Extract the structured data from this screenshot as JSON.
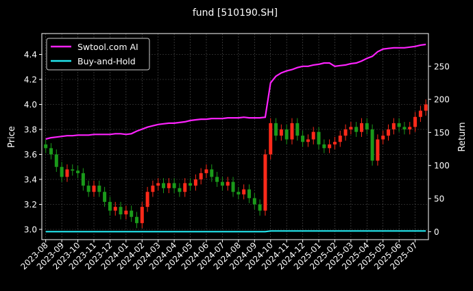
{
  "chart_data": {
    "type": "line",
    "title": "fund [510190.SH]",
    "ylabel": "Price",
    "y2label": "Return",
    "ylim": [
      2.95,
      4.54
    ],
    "y2lim": [
      -12,
      295
    ],
    "yticks": [
      "3.0",
      "3.2",
      "3.4",
      "3.6",
      "3.8",
      "4.0",
      "4.2",
      "4.4"
    ],
    "y2ticks": [
      "0",
      "50",
      "100",
      "150",
      "200",
      "250"
    ],
    "xticks": [
      "2023-08",
      "2023-09",
      "2023-10",
      "2023-11",
      "2023-12",
      "2024-01",
      "2024-02",
      "2024-03",
      "2024-04",
      "2024-05",
      "2024-06",
      "2024-07",
      "2024-08",
      "2024-09",
      "2024-10",
      "2024-11",
      "2024-12",
      "2025-01",
      "2025-02",
      "2025-03",
      "2025-04",
      "2025-05",
      "2025-06",
      "2025-07"
    ],
    "grid": true,
    "legend_position": "top-left",
    "colors": {
      "up": "#ff2a1a",
      "down": "#1a9a1a",
      "strategy": "#ff22ff",
      "buy_hold": "#22e8f0",
      "background": "#000000",
      "grid": "#555555"
    },
    "price_series": {
      "name": "Price",
      "dates": [
        "2023-08-01",
        "2023-08-11",
        "2023-08-21",
        "2023-09-01",
        "2023-09-11",
        "2023-09-21",
        "2023-10-01",
        "2023-10-11",
        "2023-10-21",
        "2023-11-01",
        "2023-11-11",
        "2023-11-21",
        "2023-12-01",
        "2023-12-11",
        "2023-12-21",
        "2024-01-01",
        "2024-01-11",
        "2024-01-21",
        "2024-02-01",
        "2024-02-11",
        "2024-02-21",
        "2024-03-01",
        "2024-03-11",
        "2024-03-21",
        "2024-04-01",
        "2024-04-11",
        "2024-04-21",
        "2024-05-01",
        "2024-05-11",
        "2024-05-21",
        "2024-06-01",
        "2024-06-11",
        "2024-06-21",
        "2024-07-01",
        "2024-07-11",
        "2024-07-21",
        "2024-08-01",
        "2024-08-11",
        "2024-08-21",
        "2024-09-01",
        "2024-09-11",
        "2024-09-21",
        "2024-10-01",
        "2024-10-11",
        "2024-10-21",
        "2024-11-01",
        "2024-11-11",
        "2024-11-21",
        "2024-12-01",
        "2024-12-11",
        "2024-12-21",
        "2025-01-01",
        "2025-01-11",
        "2025-01-21",
        "2025-02-01",
        "2025-02-11",
        "2025-02-21",
        "2025-03-01",
        "2025-03-11",
        "2025-03-21",
        "2025-04-01",
        "2025-04-11",
        "2025-04-21",
        "2025-05-01",
        "2025-05-11",
        "2025-05-21",
        "2025-06-01",
        "2025-06-11",
        "2025-06-21",
        "2025-07-01",
        "2025-07-11",
        "2025-07-21"
      ],
      "close": [
        3.65,
        3.6,
        3.5,
        3.42,
        3.48,
        3.47,
        3.45,
        3.35,
        3.3,
        3.35,
        3.3,
        3.22,
        3.15,
        3.18,
        3.12,
        3.15,
        3.1,
        3.05,
        3.18,
        3.3,
        3.35,
        3.37,
        3.33,
        3.37,
        3.33,
        3.3,
        3.37,
        3.35,
        3.4,
        3.45,
        3.48,
        3.42,
        3.38,
        3.35,
        3.38,
        3.3,
        3.28,
        3.32,
        3.25,
        3.2,
        3.15,
        3.6,
        3.85,
        3.75,
        3.8,
        3.72,
        3.85,
        3.75,
        3.7,
        3.72,
        3.78,
        3.68,
        3.65,
        3.68,
        3.7,
        3.75,
        3.8,
        3.82,
        3.78,
        3.85,
        3.8,
        3.55,
        3.72,
        3.75,
        3.8,
        3.85,
        3.82,
        3.8,
        3.82,
        3.9,
        3.95,
        4.0
      ]
    },
    "series": [
      {
        "name": "Swtool.com AI",
        "axis": "right",
        "values": [
          140,
          142,
          143,
          144,
          145,
          145,
          146,
          146,
          146,
          147,
          147,
          147,
          147,
          148,
          148,
          147,
          148,
          152,
          155,
          158,
          160,
          162,
          163,
          164,
          164,
          165,
          166,
          168,
          169,
          170,
          170,
          171,
          171,
          171,
          172,
          172,
          172,
          173,
          172,
          172,
          172,
          173,
          225,
          235,
          240,
          243,
          245,
          248,
          250,
          250,
          252,
          253,
          255,
          255,
          250,
          251,
          252,
          254,
          255,
          258,
          262,
          265,
          272,
          276,
          277,
          278,
          278,
          278,
          279,
          280,
          282,
          283
        ]
      },
      {
        "name": "Buy-and-Hold",
        "axis": "right",
        "values": [
          0,
          0,
          0,
          0,
          0,
          0,
          0,
          0,
          0,
          0,
          0,
          0,
          0,
          0,
          0,
          0,
          0,
          0,
          0,
          0,
          0,
          0,
          0,
          0,
          0,
          0,
          0,
          0,
          0,
          0,
          0,
          0,
          0,
          0,
          0,
          0,
          0,
          0,
          0,
          0,
          0,
          0,
          1,
          1,
          1,
          1,
          1,
          1,
          1,
          1,
          1,
          1,
          1,
          1,
          1,
          1,
          1,
          1,
          1,
          1,
          1,
          1,
          1,
          1,
          1,
          1,
          1,
          1,
          1,
          1,
          1,
          1
        ]
      }
    ]
  }
}
